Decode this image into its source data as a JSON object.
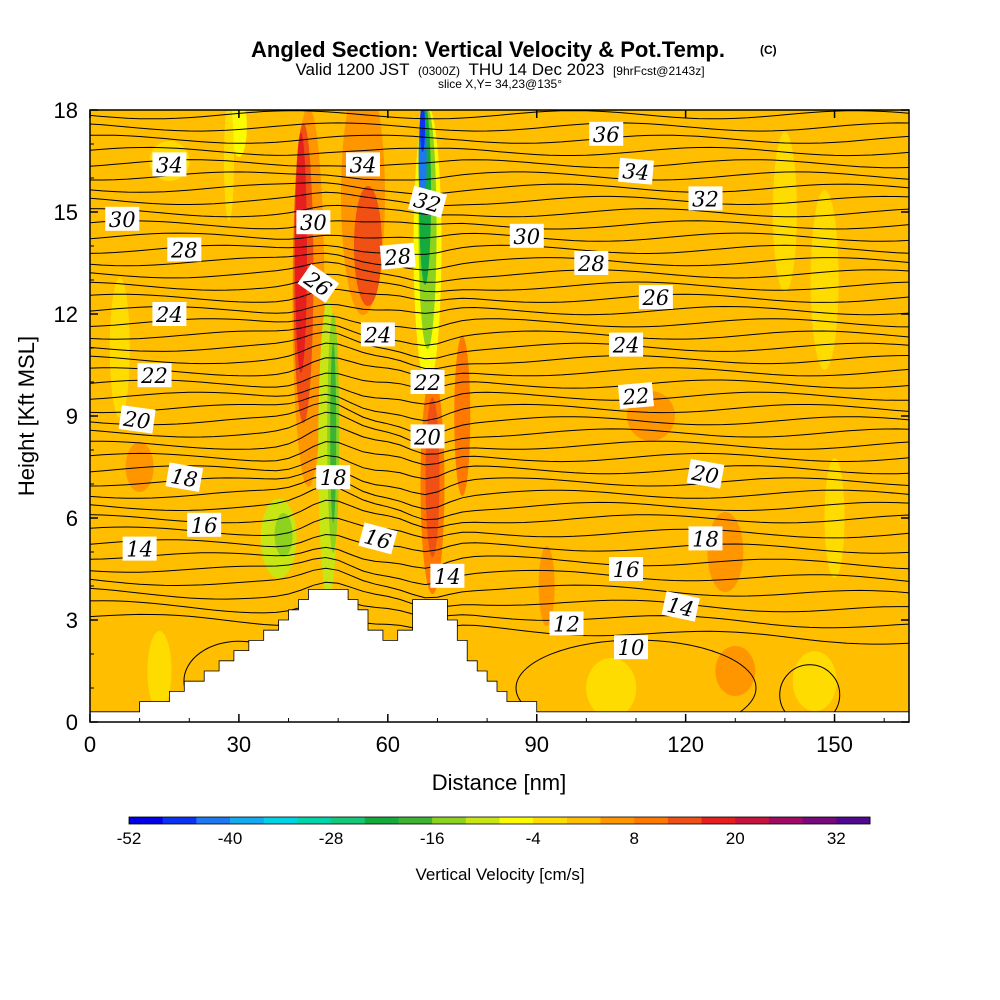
{
  "chart_data": {
    "type": "heatmap",
    "title": "Angled Section: Vertical Velocity & Pot.Temp.",
    "title_suffix": "(C)",
    "subtitle": {
      "part1": "Valid 1200 JST",
      "part2": "(0300Z)",
      "part3": "THU 14 Dec 2023",
      "part4": "[9hrFcst@2143z]"
    },
    "slice_label": "slice X,Y= 34,23@135°",
    "xlabel": "Distance [nm]",
    "ylabel": "Height [Kft MSL]",
    "xlim": [
      0,
      165
    ],
    "ylim": [
      0,
      18
    ],
    "x_ticks": [
      0,
      30,
      60,
      90,
      120,
      150
    ],
    "y_ticks": [
      0,
      3,
      6,
      9,
      12,
      15,
      18
    ],
    "colorbar": {
      "label": "Vertical Velocity [cm/s]",
      "range": [
        -52,
        36
      ],
      "tick_values": [
        -52,
        -40,
        -28,
        -16,
        -4,
        8,
        20,
        32
      ],
      "colors": [
        "#0000e6",
        "#0a32f0",
        "#1e78f0",
        "#14aaf0",
        "#00d2e6",
        "#00d2aa",
        "#14c878",
        "#14aa3c",
        "#3cb432",
        "#8cd21e",
        "#c8e614",
        "#fafa00",
        "#ffdc00",
        "#ffbe00",
        "#ff9600",
        "#ff7800",
        "#f05014",
        "#e61e1e",
        "#c8143c",
        "#a00a64",
        "#78087c",
        "#500890"
      ]
    },
    "contour_labels": [
      {
        "text": "36",
        "x": 104,
        "y": 17.3,
        "rot": 0
      },
      {
        "text": "34",
        "x": 16,
        "y": 16.4,
        "rot": 0
      },
      {
        "text": "34",
        "x": 55,
        "y": 16.4,
        "rot": 0
      },
      {
        "text": "34",
        "x": 110,
        "y": 16.2,
        "rot": 5
      },
      {
        "text": "32",
        "x": 68,
        "y": 15.3,
        "rot": 15
      },
      {
        "text": "32",
        "x": 124,
        "y": 15.4,
        "rot": 0
      },
      {
        "text": "30",
        "x": 6.5,
        "y": 14.8,
        "rot": 0
      },
      {
        "text": "30",
        "x": 45,
        "y": 14.7,
        "rot": 0
      },
      {
        "text": "30",
        "x": 88,
        "y": 14.3,
        "rot": 0
      },
      {
        "text": "28",
        "x": 19,
        "y": 13.9,
        "rot": 0
      },
      {
        "text": "28",
        "x": 62,
        "y": 13.7,
        "rot": -5
      },
      {
        "text": "28",
        "x": 101,
        "y": 13.5,
        "rot": 0
      },
      {
        "text": "26",
        "x": 46,
        "y": 12.9,
        "rot": 35
      },
      {
        "text": "26",
        "x": 114,
        "y": 12.5,
        "rot": 0
      },
      {
        "text": "24",
        "x": 16,
        "y": 12.0,
        "rot": 0
      },
      {
        "text": "24",
        "x": 58,
        "y": 11.4,
        "rot": 0
      },
      {
        "text": "24",
        "x": 108,
        "y": 11.1,
        "rot": 0
      },
      {
        "text": "22",
        "x": 13,
        "y": 10.2,
        "rot": 0
      },
      {
        "text": "22",
        "x": 68,
        "y": 10.0,
        "rot": 0
      },
      {
        "text": "22",
        "x": 110,
        "y": 9.6,
        "rot": -5
      },
      {
        "text": "20",
        "x": 9.5,
        "y": 8.9,
        "rot": 8
      },
      {
        "text": "20",
        "x": 68,
        "y": 8.4,
        "rot": 0
      },
      {
        "text": "20",
        "x": 124,
        "y": 7.3,
        "rot": 10
      },
      {
        "text": "18",
        "x": 19,
        "y": 7.2,
        "rot": 10
      },
      {
        "text": "18",
        "x": 49,
        "y": 7.2,
        "rot": 0
      },
      {
        "text": "18",
        "x": 124,
        "y": 5.4,
        "rot": 0
      },
      {
        "text": "16",
        "x": 23,
        "y": 5.8,
        "rot": 0
      },
      {
        "text": "16",
        "x": 58,
        "y": 5.4,
        "rot": 15
      },
      {
        "text": "16",
        "x": 108,
        "y": 4.5,
        "rot": 0
      },
      {
        "text": "14",
        "x": 10,
        "y": 5.1,
        "rot": 0
      },
      {
        "text": "14",
        "x": 72,
        "y": 4.3,
        "rot": 0
      },
      {
        "text": "14",
        "x": 119,
        "y": 3.4,
        "rot": 12
      },
      {
        "text": "12",
        "x": 96,
        "y": 2.9,
        "rot": 0
      },
      {
        "text": "10",
        "x": 109,
        "y": 2.2,
        "rot": 0
      }
    ]
  }
}
